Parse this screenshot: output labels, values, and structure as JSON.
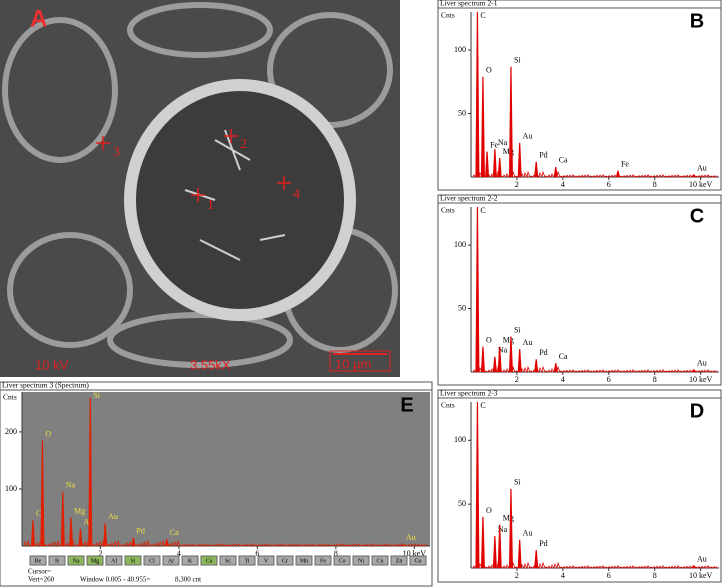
{
  "image": {
    "panel": "A",
    "points": [
      "1",
      "2",
      "3",
      "4"
    ],
    "voltage": "10 kV",
    "magnification": "3.55kX",
    "scale_bar": "10 µm"
  },
  "chart_data": [
    {
      "type": "spectrum",
      "panel": "B",
      "title": "Liver spectrum 2-1",
      "y_label": "Cnts",
      "color": "#e00000",
      "label_color": "#000000",
      "x": [
        0.28,
        0.52,
        0.7,
        1.04,
        1.25,
        1.74,
        2.12,
        2.84,
        3.69,
        6.4,
        9.71
      ],
      "values": [
        130,
        79,
        20,
        22,
        15,
        87,
        27,
        12,
        8,
        5,
        2
      ],
      "labels": [
        "C",
        "O",
        "Fe",
        "Na",
        "Mg",
        "Si",
        "Au",
        "Pd",
        "Ca",
        "Fe",
        "Au"
      ],
      "xlim": [
        0,
        10.8
      ],
      "ylim": [
        0,
        130
      ],
      "yticks": [
        50,
        100
      ],
      "xticks": [
        2,
        4,
        6,
        8,
        {
          "value": 10,
          "label": "10 keV"
        }
      ]
    },
    {
      "type": "spectrum",
      "panel": "C",
      "title": "Liver spectrum 2-2",
      "y_label": "Cnts",
      "color": "#e00000",
      "label_color": "#000000",
      "x": [
        0.28,
        0.52,
        1.04,
        1.25,
        1.74,
        2.12,
        2.84,
        3.69,
        9.71
      ],
      "values": [
        130,
        20,
        12,
        20,
        28,
        18,
        10,
        7,
        2
      ],
      "labels": [
        "C",
        "O",
        "Na",
        "Mg",
        "Si",
        "Au",
        "Pd",
        "Ca",
        "Au"
      ],
      "xlim": [
        0,
        10.8
      ],
      "ylim": [
        0,
        130
      ],
      "yticks": [
        50,
        100
      ],
      "xticks": [
        2,
        4,
        6,
        8,
        {
          "value": 10,
          "label": "10 keV"
        }
      ]
    },
    {
      "type": "spectrum",
      "panel": "D",
      "title": "Liver spectrum 2-3",
      "y_label": "Cnts",
      "color": "#e00000",
      "label_color": "#000000",
      "x": [
        0.28,
        0.52,
        1.04,
        1.25,
        1.74,
        2.12,
        2.84,
        9.71
      ],
      "values": [
        130,
        40,
        25,
        34,
        62,
        22,
        14,
        2
      ],
      "labels": [
        "C",
        "O",
        "Na",
        "Mg",
        "Si",
        "Au",
        "Pd",
        "Au"
      ],
      "xlim": [
        0,
        10.8
      ],
      "ylim": [
        0,
        130
      ],
      "yticks": [
        50,
        100
      ],
      "xticks": [
        2,
        4,
        6,
        8,
        {
          "value": 10,
          "label": "10 keV"
        }
      ]
    },
    {
      "type": "spectrum",
      "panel": "E",
      "title": "Liver spectrum 3 (Spectrum)",
      "y_label": "Cnts",
      "color": "#e02000",
      "label_color": "#f0e040",
      "background": "#808080",
      "x": [
        0.28,
        0.52,
        1.04,
        1.25,
        1.49,
        1.74,
        2.12,
        2.84,
        3.69,
        9.71
      ],
      "values": [
        45,
        185,
        95,
        50,
        30,
        260,
        40,
        15,
        12,
        3
      ],
      "labels": [
        "C",
        "O",
        "Na",
        "Mg",
        "Al",
        "Si",
        "Au",
        "Pd",
        "Ca",
        "Au"
      ],
      "xlim": [
        0,
        10.4
      ],
      "ylim": [
        0,
        270
      ],
      "yticks": [
        100,
        200
      ],
      "xticks": [
        2,
        4,
        6,
        8,
        {
          "value": 10,
          "label": "10 keV"
        }
      ],
      "element_buttons": [
        "Be",
        "B",
        "Na",
        "Mg",
        "Al",
        "Si",
        "Cl",
        "Ar",
        "K",
        "Ca",
        "Sc",
        "Ti",
        "V",
        "Cr",
        "Mn",
        "Fe",
        "Co",
        "Ni",
        "Cu",
        "Zn",
        "Ga"
      ],
      "footer": [
        "Cursor=",
        "Vert=260",
        "Window 0.005 - 40.955=",
        "8,300 cnt"
      ]
    }
  ]
}
